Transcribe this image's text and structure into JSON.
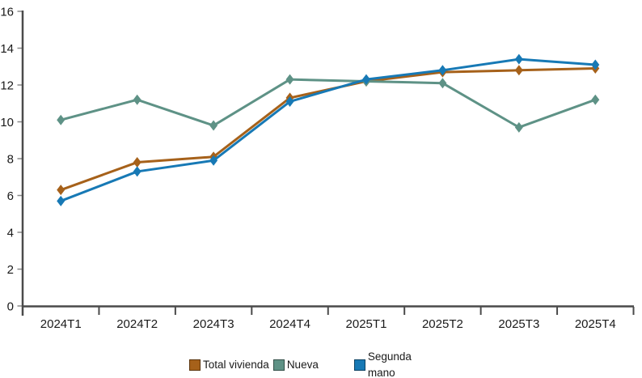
{
  "chart_data": {
    "type": "line",
    "title": "",
    "xlabel": "",
    "ylabel": "",
    "categories": [
      "2024T1",
      "2024T2",
      "2024T3",
      "2024T4",
      "2025T1",
      "2025T2",
      "2025T3",
      "2025T4"
    ],
    "series": [
      {
        "name": "Total vivienda",
        "color": "#A6611A",
        "values": [
          6.3,
          7.8,
          8.1,
          11.3,
          12.2,
          12.7,
          12.8,
          12.9
        ]
      },
      {
        "name": "Nueva",
        "color": "#5E9286",
        "values": [
          10.1,
          11.2,
          9.8,
          12.3,
          12.2,
          12.1,
          9.7,
          11.2
        ]
      },
      {
        "name": "Segunda mano",
        "color": "#1779B5",
        "values": [
          5.7,
          7.3,
          7.9,
          11.1,
          12.3,
          12.8,
          13.4,
          13.1
        ]
      }
    ],
    "ylim": [
      0,
      16
    ],
    "yticks": [
      0,
      2,
      4,
      6,
      8,
      10,
      12,
      14,
      16
    ],
    "grid": false,
    "legend_position": "bottom",
    "marker": "diamond",
    "axis_color": "#4a4a4a"
  },
  "legend": {
    "segunda_line1": "Segunda",
    "segunda_line2": "mano"
  }
}
